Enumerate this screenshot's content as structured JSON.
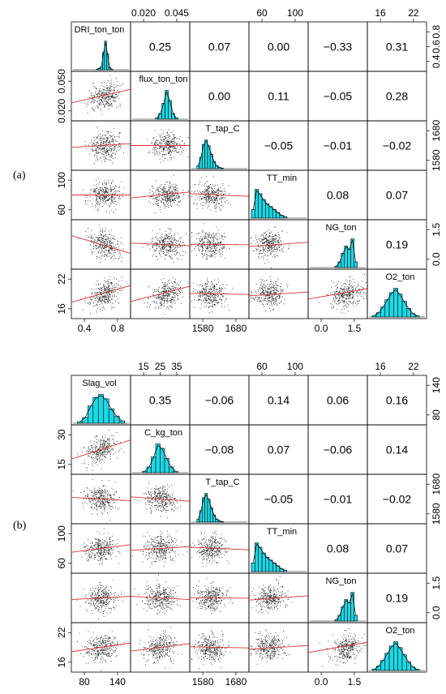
{
  "chart_data": [
    {
      "type": "scatter-matrix",
      "panel_label": "(a)",
      "variables": [
        "DRI_ton_ton",
        "flux_ton_ton",
        "T_tap_C",
        "TT_min",
        "NG_ton",
        "O2_ton"
      ],
      "correlations": [
        [
          "",
          "0.25",
          "0.07",
          "0.00",
          "−0.33",
          "0.31"
        ],
        [
          "",
          "",
          "0.00",
          "0.11",
          "−0.05",
          "0.28"
        ],
        [
          "",
          "",
          "",
          "−0.05",
          "−0.01",
          "−0.02"
        ],
        [
          "",
          "",
          "",
          "",
          "0.08",
          "0.07"
        ],
        [
          "",
          "",
          "",
          "",
          "",
          "0.19"
        ],
        [
          "",
          "",
          "",
          "",
          "",
          ""
        ]
      ],
      "top_ticks": [
        {
          "col": 1,
          "labels": [
            "0.020",
            "0.045"
          ]
        },
        {
          "col": 3,
          "labels": [
            "60",
            "100"
          ]
        },
        {
          "col": 5,
          "labels": [
            "16",
            "22"
          ]
        }
      ],
      "bottom_ticks": [
        {
          "col": 0,
          "labels": [
            "0.4",
            "0.8"
          ]
        },
        {
          "col": 2,
          "labels": [
            "1580",
            "1680"
          ]
        },
        {
          "col": 4,
          "labels": [
            "0.0",
            "1.5"
          ]
        }
      ],
      "left_ticks": [
        {
          "row": 1,
          "labels": [
            "0.020",
            "0.050"
          ]
        },
        {
          "row": 3,
          "labels": [
            "60",
            "100"
          ]
        },
        {
          "row": 5,
          "labels": [
            "16",
            "22"
          ]
        }
      ],
      "right_ticks": [
        {
          "row": 0,
          "labels": [
            "0.4",
            "0.6",
            "0.8"
          ]
        },
        {
          "row": 2,
          "labels": [
            "1580",
            "1680"
          ]
        },
        {
          "row": 4,
          "labels": [
            "0.0",
            "1.5"
          ]
        }
      ],
      "hist_bars": [
        [
          0.02,
          0.05,
          0.1,
          0.6,
          1.0,
          0.55,
          0.08,
          0.02
        ],
        [
          0.05,
          0.2,
          0.55,
          1.0,
          0.65,
          0.2,
          0.05
        ],
        [
          0.1,
          0.4,
          0.85,
          1.0,
          0.8,
          0.5,
          0.25,
          0.1,
          0.04,
          0.02
        ],
        [
          0.3,
          1.0,
          0.85,
          0.65,
          0.5,
          0.4,
          0.3,
          0.2,
          0.1,
          0.05
        ],
        [
          0.05,
          0.2,
          0.5,
          0.75,
          0.65,
          1.0,
          0.2
        ],
        [
          0.05,
          0.15,
          0.35,
          0.6,
          0.85,
          1.0,
          0.8,
          0.55,
          0.3,
          0.12,
          0.04
        ]
      ],
      "hist_offset": [
        0.42,
        0.42,
        0.12,
        0.04,
        0.45,
        0.08
      ],
      "hist_span": [
        0.28,
        0.38,
        0.45,
        0.6,
        0.38,
        0.8
      ],
      "trend_slopes": [
        [
          0,
          0,
          0,
          0,
          0,
          0
        ],
        [
          0.25,
          0,
          0,
          0,
          0,
          0
        ],
        [
          0.07,
          0.0,
          0,
          0,
          0,
          0
        ],
        [
          0.0,
          0.11,
          -0.05,
          0,
          0,
          0
        ],
        [
          -0.33,
          -0.05,
          -0.01,
          0.08,
          0,
          0
        ],
        [
          0.31,
          0.28,
          -0.02,
          0.07,
          0.19,
          0
        ]
      ]
    },
    {
      "type": "scatter-matrix",
      "panel_label": "(b)",
      "variables": [
        "Slag_vol",
        "C_kg_ton",
        "T_tap_C",
        "TT_min",
        "NG_ton",
        "O2_ton"
      ],
      "correlations": [
        [
          "",
          "0.35",
          "−0.06",
          "0.14",
          "0.06",
          "0.16"
        ],
        [
          "",
          "",
          "−0.08",
          "0.07",
          "−0.06",
          "0.14"
        ],
        [
          "",
          "",
          "",
          "−0.05",
          "−0.01",
          "−0.02"
        ],
        [
          "",
          "",
          "",
          "",
          "0.08",
          "0.07"
        ],
        [
          "",
          "",
          "",
          "",
          "",
          "0.19"
        ],
        [
          "",
          "",
          "",
          "",
          "",
          ""
        ]
      ],
      "top_ticks": [
        {
          "col": 1,
          "labels": [
            "15",
            "25",
            "35"
          ]
        },
        {
          "col": 3,
          "labels": [
            "60",
            "100"
          ]
        },
        {
          "col": 5,
          "labels": [
            "16",
            "22"
          ]
        }
      ],
      "bottom_ticks": [
        {
          "col": 0,
          "labels": [
            "80",
            "140"
          ]
        },
        {
          "col": 2,
          "labels": [
            "1580",
            "1680"
          ]
        },
        {
          "col": 4,
          "labels": [
            "0.0",
            "1.5"
          ]
        }
      ],
      "left_ticks": [
        {
          "row": 1,
          "labels": [
            "15",
            "30"
          ]
        },
        {
          "row": 3,
          "labels": [
            "60",
            "100"
          ]
        },
        {
          "row": 5,
          "labels": [
            "16",
            "22"
          ]
        }
      ],
      "right_ticks": [
        {
          "row": 0,
          "labels": [
            "80",
            "140"
          ]
        },
        {
          "row": 2,
          "labels": [
            "1580",
            "1680"
          ]
        },
        {
          "row": 4,
          "labels": [
            "0.0",
            "1.5"
          ]
        }
      ],
      "hist_bars": [
        [
          0.05,
          0.2,
          0.6,
          0.9,
          1.0,
          0.85,
          0.5,
          0.25,
          0.08
        ],
        [
          0.05,
          0.2,
          0.55,
          1.0,
          0.85,
          0.5,
          0.2,
          0.05
        ],
        [
          0.1,
          0.4,
          0.85,
          1.0,
          0.8,
          0.5,
          0.25,
          0.1,
          0.04,
          0.02
        ],
        [
          0.3,
          1.0,
          0.85,
          0.65,
          0.5,
          0.4,
          0.3,
          0.2,
          0.1,
          0.05
        ],
        [
          0.05,
          0.2,
          0.5,
          0.75,
          0.65,
          1.0,
          0.2
        ],
        [
          0.05,
          0.15,
          0.35,
          0.6,
          0.85,
          1.0,
          0.8,
          0.55,
          0.3,
          0.12,
          0.04
        ]
      ],
      "hist_offset": [
        0.1,
        0.2,
        0.12,
        0.04,
        0.45,
        0.08
      ],
      "hist_span": [
        0.8,
        0.6,
        0.45,
        0.6,
        0.38,
        0.8
      ],
      "trend_slopes": [
        [
          0,
          0,
          0,
          0,
          0,
          0
        ],
        [
          0.35,
          0,
          0,
          0,
          0,
          0
        ],
        [
          -0.06,
          -0.08,
          0,
          0,
          0,
          0
        ],
        [
          0.14,
          0.07,
          -0.05,
          0,
          0,
          0
        ],
        [
          0.06,
          -0.06,
          -0.01,
          0.08,
          0,
          0
        ],
        [
          0.16,
          0.14,
          -0.02,
          0.07,
          0.19,
          0
        ]
      ]
    }
  ]
}
